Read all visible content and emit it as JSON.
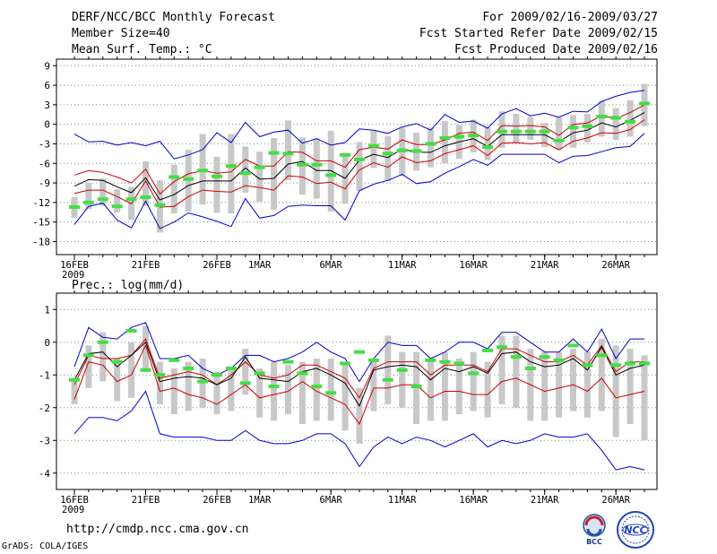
{
  "header": {
    "title": "DERF/NCC/BCC Monthly Forecast",
    "member_size": "Member Size=40",
    "variable": "Mean Surf. Temp.: °C",
    "period": "For 2009/02/16-2009/03/27",
    "fcst_started": "Fcst Started Refer Date 2009/02/15",
    "fcst_produced": "Fcst Produced Date 2009/02/16"
  },
  "footer": {
    "url": "http://cmdp.ncc.cma.gov.cn",
    "grads": "GrADS: COLA/IGES",
    "logo_bcc": "BCC",
    "logo_ncc": "NCC"
  },
  "colors": {
    "mean": "#000000",
    "spread": "#cc0000",
    "extreme": "#0000cc",
    "box": "#c8c8c8",
    "climo": "#44dd44",
    "grid": "#888888"
  },
  "chart_data": [
    {
      "type": "line",
      "title": "Mean Surf. Temp.: °C",
      "ylim": [
        -20,
        10
      ],
      "yticks": [
        "9",
        "6",
        "3",
        "0",
        "-3",
        "-6",
        "-9",
        "-12",
        "-15",
        "-18"
      ],
      "xticks": [
        {
          "day": 1,
          "label": "16FEB",
          "sub": "2009"
        },
        {
          "day": 6,
          "label": "21FEB"
        },
        {
          "day": 11,
          "label": "26FEB"
        },
        {
          "day": 14,
          "label": "1MAR"
        },
        {
          "day": 19,
          "label": "6MAR"
        },
        {
          "day": 24,
          "label": "11MAR"
        },
        {
          "day": 29,
          "label": "16MAR"
        },
        {
          "day": 34,
          "label": "21MAR"
        },
        {
          "day": 39,
          "label": "26MAR"
        }
      ],
      "series": [
        {
          "name": "max",
          "values": [
            -1.5,
            -2.7,
            -2.6,
            -3.2,
            -2.8,
            -3.3,
            -2.6,
            -5.3,
            -4.7,
            -3.9,
            -1.3,
            -2.8,
            0.3,
            -1.9,
            -1.2,
            -0.9,
            -2.9,
            -2.2,
            -3.2,
            -2.8,
            -0.7,
            -0.9,
            -1.4,
            -0.4,
            0.1,
            -0.9,
            1.5,
            0.3,
            0.5,
            -0.6,
            1.6,
            2.4,
            1.3,
            1.7,
            1.1,
            2.0,
            1.9,
            3.5,
            4.3,
            4.9,
            5.2
          ]
        },
        {
          "name": "upper",
          "values": [
            -7.8,
            -7.1,
            -7.4,
            -8.1,
            -9.0,
            -6.9,
            -10.7,
            -8.8,
            -7.6,
            -7.1,
            -7.5,
            -7.3,
            -5.4,
            -6.4,
            -6.4,
            -4.2,
            -4.3,
            -5.6,
            -5.6,
            -6.6,
            -3.9,
            -3.5,
            -3.8,
            -2.4,
            -3.1,
            -3.1,
            -2.4,
            -1.4,
            -1.2,
            -2.5,
            -0.2,
            -0.3,
            -0.2,
            -0.4,
            -1.7,
            0.0,
            0.2,
            1.3,
            0.9,
            1.8,
            3.0
          ]
        },
        {
          "name": "mean",
          "values": [
            -9.5,
            -8.5,
            -8.6,
            -9.6,
            -10.5,
            -8.2,
            -11.6,
            -10.8,
            -9.4,
            -8.7,
            -8.7,
            -8.7,
            -6.7,
            -8.4,
            -8.3,
            -6.1,
            -5.7,
            -7.1,
            -7.1,
            -8.3,
            -5.5,
            -4.6,
            -5.1,
            -3.8,
            -4.3,
            -4.3,
            -3.3,
            -2.7,
            -2.2,
            -3.4,
            -1.6,
            -1.6,
            -1.6,
            -1.6,
            -2.7,
            -1.3,
            -0.9,
            0.2,
            -0.4,
            0.6,
            1.8
          ]
        },
        {
          "name": "lower",
          "values": [
            -10.6,
            -10.1,
            -10.1,
            -11.1,
            -12.2,
            -8.7,
            -12.7,
            -12.6,
            -11.1,
            -10.1,
            -10.3,
            -10.4,
            -9.4,
            -9.7,
            -10.1,
            -7.9,
            -8.1,
            -9.1,
            -8.9,
            -9.9,
            -7.0,
            -5.9,
            -6.6,
            -5.0,
            -5.9,
            -5.6,
            -4.5,
            -3.9,
            -3.3,
            -4.8,
            -2.9,
            -2.8,
            -3.0,
            -2.8,
            -3.9,
            -2.6,
            -2.1,
            -1.3,
            -1.4,
            -0.8,
            0.7
          ]
        },
        {
          "name": "min",
          "values": [
            -15.4,
            -12.6,
            -12.1,
            -14.7,
            -15.9,
            -11.8,
            -16.0,
            -15.0,
            -13.6,
            -14.2,
            -14.9,
            -15.7,
            -11.4,
            -14.4,
            -14.0,
            -12.6,
            -12.4,
            -12.5,
            -12.5,
            -14.7,
            -10.2,
            -9.2,
            -8.6,
            -7.7,
            -9.1,
            -8.8,
            -7.5,
            -6.5,
            -5.4,
            -6.3,
            -4.6,
            -4.6,
            -4.6,
            -4.6,
            -5.9,
            -4.9,
            -4.8,
            -4.2,
            -3.6,
            -3.4,
            -1.4
          ]
        }
      ],
      "boxes": [
        [
          -14.4,
          -11.2
        ],
        [
          -13.0,
          -9.0
        ],
        [
          -12.5,
          -8.3
        ],
        [
          -13.5,
          -10.0
        ],
        [
          -14.7,
          -9.6
        ],
        [
          -12.5,
          -5.7
        ],
        [
          -16.6,
          -8.6
        ],
        [
          -13.7,
          -6.2
        ],
        [
          -13.4,
          -3.9
        ],
        [
          -12.3,
          -1.5
        ],
        [
          -13.6,
          -5.0
        ],
        [
          -13.7,
          -1.5
        ],
        [
          -10.5,
          -3.4
        ],
        [
          -11.9,
          -4.2
        ],
        [
          -13.1,
          -2.1
        ],
        [
          -8.6,
          0.6
        ],
        [
          -10.8,
          -2.0
        ],
        [
          -11.4,
          -2.2
        ],
        [
          -13.4,
          -1.0
        ],
        [
          -12.2,
          -4.4
        ],
        [
          -10.2,
          -2.7
        ],
        [
          -6.7,
          -1.0
        ],
        [
          -8.7,
          -1.8
        ],
        [
          -7.9,
          -0.5
        ],
        [
          -7.1,
          -1.3
        ],
        [
          -6.6,
          -0.5
        ],
        [
          -6.0,
          0.5
        ],
        [
          -5.3,
          -0.1
        ],
        [
          -4.3,
          0.7
        ],
        [
          -5.5,
          -0.5
        ],
        [
          -3.6,
          2.0
        ],
        [
          -2.9,
          1.6
        ],
        [
          -2.4,
          1.1
        ],
        [
          -3.5,
          0.2
        ],
        [
          -3.9,
          1.1
        ],
        [
          -3.6,
          1.4
        ],
        [
          -2.8,
          1.6
        ],
        [
          -1.9,
          3.6
        ],
        [
          -2.4,
          2.5
        ],
        [
          -1.9,
          3.7
        ],
        [
          -0.3,
          6.2
        ]
      ],
      "climo": [
        -12.7,
        -12.0,
        -11.5,
        -12.6,
        -11.5,
        -11.2,
        -12.4,
        -8.1,
        -8.4,
        -7.1,
        -8.0,
        -6.4,
        -7.5,
        -6.6,
        -4.4,
        -4.5,
        -6.2,
        -6.2,
        -7.8,
        -4.7,
        -5.4,
        -3.3,
        -4.5,
        -4.0,
        -4.1,
        -3.0,
        -2.1,
        -1.9,
        -1.7,
        -3.5,
        -1.1,
        -1.1,
        -1.1,
        -1.1,
        -2.5,
        -0.5,
        -0.3,
        1.2,
        1.0,
        0.4,
        3.2
      ]
    },
    {
      "type": "line",
      "title": "Prec.: log(mm/d)",
      "ylim": [
        -4.5,
        1.5
      ],
      "yticks": [
        "1",
        "0",
        "-1",
        "-2",
        "-3",
        "-4"
      ],
      "xticks": [
        {
          "day": 1,
          "label": "16FEB",
          "sub": "2009"
        },
        {
          "day": 6,
          "label": "21FEB"
        },
        {
          "day": 11,
          "label": "26FEB"
        },
        {
          "day": 14,
          "label": "1MAR"
        },
        {
          "day": 19,
          "label": "6MAR"
        },
        {
          "day": 24,
          "label": "11MAR"
        },
        {
          "day": 29,
          "label": "16MAR"
        },
        {
          "day": 34,
          "label": "21MAR"
        },
        {
          "day": 39,
          "label": "26MAR"
        }
      ],
      "series": [
        {
          "name": "max",
          "values": [
            -0.75,
            0.45,
            0.15,
            0.1,
            0.45,
            0.6,
            -0.5,
            -0.5,
            -0.4,
            -0.8,
            -1.0,
            -0.8,
            -0.4,
            -0.4,
            -0.6,
            -0.5,
            -0.3,
            0.0,
            -0.3,
            -0.5,
            -1.2,
            -0.5,
            0.0,
            -0.1,
            -0.1,
            -0.5,
            -0.3,
            0.0,
            0.0,
            -0.2,
            0.3,
            0.3,
            0.0,
            -0.3,
            -0.3,
            0.1,
            -0.3,
            0.4,
            -0.5,
            0.1,
            0.1
          ]
        },
        {
          "name": "upper",
          "values": [
            -1.3,
            -0.4,
            -0.5,
            -0.5,
            -0.4,
            0.1,
            -1.1,
            -1.0,
            -0.9,
            -1.0,
            -1.3,
            -1.0,
            -0.6,
            -1.0,
            -1.1,
            -1.0,
            -0.7,
            -0.7,
            -0.9,
            -1.1,
            -1.7,
            -0.8,
            -0.6,
            -0.6,
            -0.6,
            -1.0,
            -0.7,
            -0.7,
            -0.7,
            -0.9,
            -0.2,
            -0.2,
            -0.4,
            -0.6,
            -0.6,
            -0.4,
            -0.7,
            -0.1,
            -0.9,
            -0.6,
            -0.6
          ]
        },
        {
          "name": "mean",
          "values": [
            -1.15,
            -0.35,
            -0.3,
            -0.75,
            -0.4,
            0.0,
            -1.2,
            -1.1,
            -1.05,
            -1.1,
            -1.3,
            -1.1,
            -0.45,
            -1.1,
            -1.15,
            -1.2,
            -0.9,
            -0.8,
            -1.0,
            -1.25,
            -1.95,
            -0.85,
            -0.75,
            -0.7,
            -0.75,
            -1.15,
            -0.8,
            -0.9,
            -0.75,
            -0.95,
            -0.35,
            -0.3,
            -0.6,
            -0.75,
            -0.7,
            -0.5,
            -0.85,
            -0.15,
            -1.0,
            -0.8,
            -0.7
          ]
        },
        {
          "name": "lower",
          "values": [
            -1.75,
            -0.6,
            -0.7,
            -1.2,
            -1.0,
            -0.1,
            -1.5,
            -1.4,
            -1.6,
            -1.7,
            -1.9,
            -1.6,
            -1.3,
            -1.7,
            -1.6,
            -1.5,
            -1.2,
            -1.5,
            -1.7,
            -1.9,
            -2.5,
            -1.4,
            -1.4,
            -1.3,
            -1.3,
            -1.7,
            -1.5,
            -1.5,
            -1.6,
            -1.6,
            -1.2,
            -1.1,
            -1.3,
            -1.5,
            -1.4,
            -1.3,
            -1.5,
            -1.1,
            -1.7,
            -1.6,
            -1.5
          ]
        },
        {
          "name": "min",
          "values": [
            -2.8,
            -2.3,
            -2.3,
            -2.4,
            -2.1,
            -1.5,
            -2.8,
            -2.9,
            -2.9,
            -2.9,
            -3.0,
            -3.0,
            -2.7,
            -3.0,
            -3.1,
            -3.1,
            -3.0,
            -2.8,
            -2.8,
            -3.1,
            -3.8,
            -3.2,
            -2.9,
            -3.1,
            -2.9,
            -3.0,
            -3.2,
            -3.0,
            -2.8,
            -3.2,
            -3.0,
            -3.1,
            -3.0,
            -2.8,
            -2.9,
            -2.9,
            -2.8,
            -3.3,
            -3.9,
            -3.8,
            -3.9
          ]
        }
      ],
      "boxes": [
        [
          -1.9,
          -1.1
        ],
        [
          -1.4,
          -0.1
        ],
        [
          -1.2,
          0.3
        ],
        [
          -1.8,
          -0.5
        ],
        [
          -1.7,
          0.0
        ],
        [
          -0.9,
          0.5
        ],
        [
          -1.9,
          -0.6
        ],
        [
          -2.2,
          -0.8
        ],
        [
          -2.1,
          -0.6
        ],
        [
          -2.0,
          -0.5
        ],
        [
          -2.2,
          -0.9
        ],
        [
          -2.1,
          -0.8
        ],
        [
          -1.6,
          -0.2
        ],
        [
          -2.3,
          -0.8
        ],
        [
          -2.4,
          -0.6
        ],
        [
          -2.2,
          -0.7
        ],
        [
          -2.5,
          -0.6
        ],
        [
          -2.4,
          -0.5
        ],
        [
          -2.4,
          -0.5
        ],
        [
          -2.7,
          -0.7
        ],
        [
          -3.1,
          -1.4
        ],
        [
          -2.1,
          -0.6
        ],
        [
          -1.9,
          0.2
        ],
        [
          -2.0,
          -0.3
        ],
        [
          -2.5,
          -0.3
        ],
        [
          -2.4,
          -0.6
        ],
        [
          -2.4,
          -0.3
        ],
        [
          -2.2,
          -0.5
        ],
        [
          -2.1,
          -0.3
        ],
        [
          -2.3,
          -0.6
        ],
        [
          -1.9,
          0.2
        ],
        [
          -2.0,
          0.2
        ],
        [
          -2.4,
          -0.2
        ],
        [
          -2.4,
          -0.3
        ],
        [
          -2.3,
          -0.3
        ],
        [
          -2.1,
          -0.2
        ],
        [
          -2.3,
          -0.3
        ],
        [
          -2.1,
          0.1
        ],
        [
          -2.9,
          -0.1
        ],
        [
          -2.5,
          -0.2
        ],
        [
          -3.0,
          -0.4
        ]
      ],
      "climo": [
        -1.15,
        -0.4,
        0.0,
        -0.6,
        0.35,
        -0.85,
        -1.0,
        -0.55,
        -0.8,
        -1.2,
        -1.0,
        -0.8,
        -1.25,
        -0.95,
        -1.35,
        -0.6,
        -0.95,
        -1.35,
        -1.55,
        -0.65,
        -0.3,
        -0.55,
        -1.15,
        -0.85,
        -1.35,
        -0.55,
        -0.6,
        -0.65,
        -0.95,
        -0.25,
        -0.15,
        -0.45,
        -0.8,
        -0.45,
        -0.55,
        -0.1,
        -0.7,
        -0.4,
        -0.7,
        -0.65,
        -0.65
      ]
    }
  ]
}
